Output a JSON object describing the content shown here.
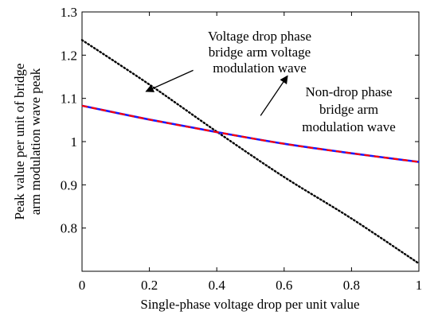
{
  "chart_data": {
    "type": "line",
    "xlabel": "Single-phase voltage drop per unit value",
    "ylabel": [
      "Peak value per unit of bridge",
      "arm modulation wave peak"
    ],
    "xlim": [
      0,
      1
    ],
    "ylim": [
      0.7,
      1.3
    ],
    "x_ticks": [
      0,
      0.2,
      0.4,
      0.6,
      0.8,
      1
    ],
    "x_tick_labels": [
      "0",
      "0.2",
      "0.4",
      "0.6",
      "0.8",
      "1"
    ],
    "y_ticks": [
      0.8,
      0.9,
      1.0,
      1.1,
      1.2,
      1.3
    ],
    "y_tick_labels": [
      "0.8",
      "0.9",
      "1",
      "1.1",
      "1.2",
      "1.3"
    ],
    "grid": false,
    "series": [
      {
        "style": "dotted",
        "color": "#000000",
        "x": [
          0,
          0.2,
          0.4,
          0.6,
          0.8,
          1.0
        ],
        "y": [
          1.235,
          1.132,
          1.023,
          0.918,
          0.822,
          0.718
        ]
      },
      {
        "style": "solid-blue-dashed-red",
        "color": "#1a1aff",
        "dash_color": "#ff0000",
        "x": [
          0,
          0.2,
          0.4,
          0.6,
          0.8,
          1.0
        ],
        "y": [
          1.083,
          1.051,
          1.022,
          0.995,
          0.973,
          0.953
        ]
      }
    ],
    "annotations": [
      {
        "lines": [
          "Voltage drop phase",
          "bridge arm voltage",
          "modulation wave"
        ],
        "arrow_from": [
          0.33,
          1.165
        ],
        "arrow_to": [
          0.19,
          1.116
        ]
      },
      {
        "lines": [
          "Non-drop phase",
          "bridge arm",
          "modulation wave"
        ],
        "arrow_from": [
          0.53,
          1.06
        ],
        "arrow_to": [
          0.61,
          1.152
        ]
      }
    ]
  }
}
